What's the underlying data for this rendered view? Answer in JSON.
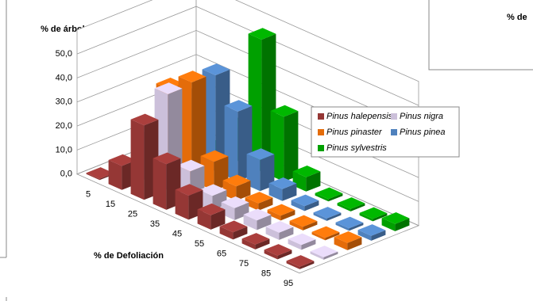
{
  "chart_data": {
    "type": "bar3d",
    "y_label": "% de árboles",
    "x_label": "% de Defoliación",
    "categories": [
      "5",
      "15",
      "25",
      "35",
      "45",
      "55",
      "65",
      "75",
      "85",
      "95"
    ],
    "series": [
      {
        "name": "Pinus halepensis",
        "color": "#953735",
        "values": [
          0.5,
          10,
          31,
          19,
          10,
          6,
          3,
          2,
          1.5,
          1
        ]
      },
      {
        "name": "Pinus nigra",
        "color": "#ccc0da",
        "values": [
          0.5,
          20,
          40,
          12,
          6,
          5,
          4,
          3,
          2,
          1
        ]
      },
      {
        "name": "Pinus pinaster",
        "color": "#e46c0a",
        "values": [
          0.5,
          34,
          41,
          12,
          6,
          3,
          2,
          1.5,
          1,
          3
        ]
      },
      {
        "name": "Pinus pinea",
        "color": "#4f81bd",
        "values": [
          0.5,
          26,
          40,
          29,
          13,
          5,
          2,
          1,
          1,
          2
        ]
      },
      {
        "name": "Pinus sylvestris",
        "color": "#00a000",
        "values": [
          0.3,
          0.5,
          14,
          55,
          27,
          6,
          1,
          1,
          1,
          3
        ]
      }
    ],
    "ylim": [
      0,
      60
    ],
    "yticks": [
      {
        "value": 0,
        "label": "0,0"
      },
      {
        "value": 10,
        "label": "10,0"
      },
      {
        "value": 20,
        "label": "20,0"
      },
      {
        "value": 30,
        "label": "30,0"
      },
      {
        "value": 40,
        "label": "40,0"
      },
      {
        "value": 50,
        "label": "50,0"
      }
    ],
    "grid": true
  },
  "cropped_chart_label": "% de"
}
